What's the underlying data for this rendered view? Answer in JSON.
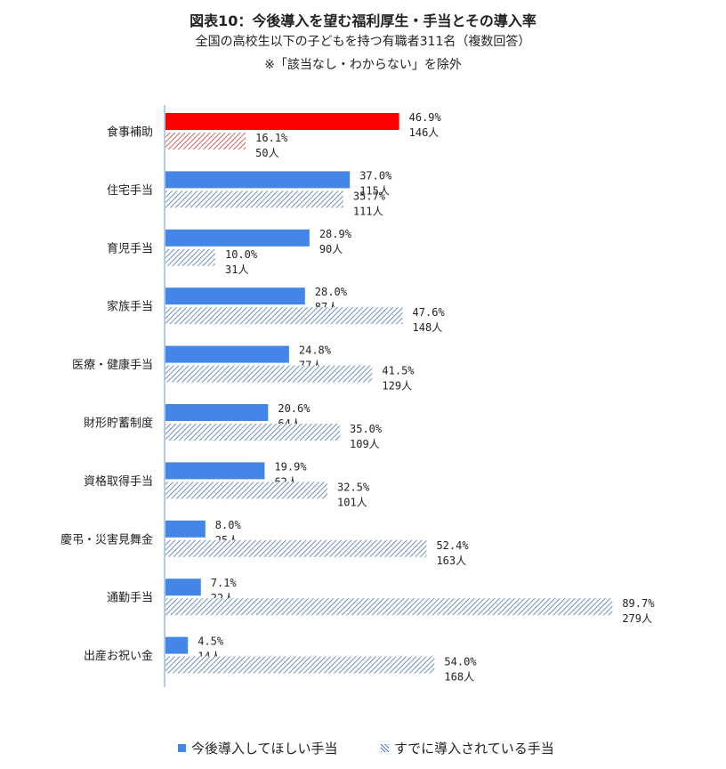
{
  "header": {
    "title": "図表10：今後導入を望む福利厚生・手当とその導入率",
    "subtitle": "全国の高校生以下の子どもを持つ有職者311名（複数回答）",
    "note": "※「該当なし・わからない」を除外"
  },
  "legend": {
    "wanted": "今後導入してほしい手当",
    "existing": "すでに導入されている手当"
  },
  "colors": {
    "wanted": "#4485e8",
    "highlight": "#ff0000",
    "hatch_blue": "#4c74b0",
    "hatch_red": "#c83c3c",
    "axis": "#7ea6d6"
  },
  "chart_data": {
    "type": "bar",
    "orientation": "horizontal",
    "xlim": [
      0,
      100
    ],
    "categories": [
      "食事補助",
      "住宅手当",
      "育児手当",
      "家族手当",
      "医療・健康手当",
      "財形貯蓄制度",
      "資格取得手当",
      "慶弔・災害見舞金",
      "通勤手当",
      "出産お祝い金"
    ],
    "series": [
      {
        "name": "今後導入してほしい手当",
        "values": [
          46.9,
          37.0,
          28.9,
          28.0,
          24.8,
          20.6,
          19.9,
          8.0,
          7.1,
          4.5
        ],
        "value_labels": [
          "46.9%",
          "37.0%",
          "28.9%",
          "28.0%",
          "24.8%",
          "20.6%",
          "19.9%",
          "8.0%",
          "7.1%",
          "4.5%"
        ],
        "counts": [
          "146人",
          "115人",
          "90人",
          "87人",
          "77人",
          "64人",
          "62人",
          "25人",
          "22人",
          "14人"
        ]
      },
      {
        "name": "すでに導入されている手当",
        "values": [
          16.1,
          35.7,
          10.0,
          47.6,
          41.5,
          35.0,
          32.5,
          52.4,
          89.7,
          54.0
        ],
        "value_labels": [
          "16.1%",
          "35.7%",
          "10.0%",
          "47.6%",
          "41.5%",
          "35.0%",
          "32.5%",
          "52.4%",
          "89.7%",
          "54.0%"
        ],
        "counts": [
          "50人",
          "111人",
          "31人",
          "148人",
          "129人",
          "109人",
          "101人",
          "163人",
          "279人",
          "168人"
        ]
      }
    ],
    "highlight_category": "食事補助"
  }
}
